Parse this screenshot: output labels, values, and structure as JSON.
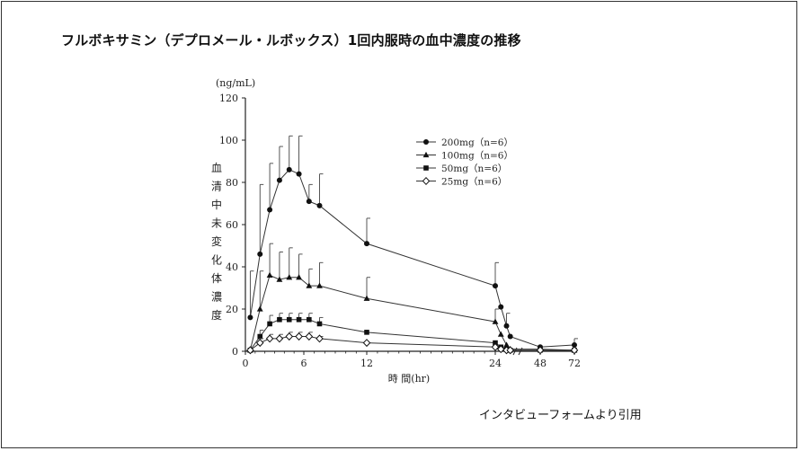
{
  "page": {
    "title": "フルボキサミン（デプロメール・ルボックス）1回内服時の血中濃度の推移",
    "source_note": "インタビューフォームより引用"
  },
  "chart_data": {
    "type": "line",
    "title": "",
    "xlabel": "時 間(hr)",
    "ylabel": "血清中未変化体濃度",
    "y_unit": "(ng/mL)",
    "xlim": [
      0,
      72
    ],
    "ylim": [
      0,
      120
    ],
    "x_axis_break": true,
    "x_break_between_hours": [
      24,
      48
    ],
    "xticks": [
      0,
      6,
      12,
      24,
      48,
      72
    ],
    "yticks": [
      0,
      20,
      40,
      60,
      80,
      100,
      120
    ],
    "grid": false,
    "legend_position": "top-right",
    "series": [
      {
        "name": "200mg（n=6）",
        "marker": "filled-circle",
        "x": [
          0.5,
          1.5,
          2.5,
          3.5,
          4.5,
          5.5,
          6.5,
          7.5,
          12,
          24,
          27,
          30,
          32,
          48,
          72
        ],
        "y": [
          16,
          46,
          67,
          81,
          86,
          84,
          71,
          69,
          51,
          31,
          21,
          12,
          7,
          2,
          3
        ],
        "error": [
          22,
          33,
          22,
          16,
          16,
          18,
          8,
          15,
          12,
          11,
          0,
          6,
          0,
          0,
          3
        ]
      },
      {
        "name": "100mg（n=6）",
        "marker": "filled-triangle",
        "x": [
          0.5,
          1.5,
          2.5,
          3.5,
          4.5,
          5.5,
          6.5,
          7.5,
          12,
          24,
          27,
          30,
          32,
          48,
          72
        ],
        "y": [
          0.5,
          20,
          36,
          34,
          35,
          35,
          31,
          31,
          25,
          14,
          8,
          3,
          1,
          1,
          0.5
        ],
        "error": [
          0,
          18,
          15,
          13,
          14,
          11,
          8,
          11,
          10,
          6,
          0,
          0,
          0,
          0,
          0
        ]
      },
      {
        "name": "50mg（n=6）",
        "marker": "filled-square",
        "x": [
          0.5,
          1.5,
          2.5,
          3.5,
          4.5,
          5.5,
          6.5,
          7.5,
          12,
          24,
          27,
          30,
          32,
          48,
          72
        ],
        "y": [
          0.5,
          7,
          13,
          15,
          15,
          15,
          15,
          13,
          9,
          4,
          2,
          1,
          0.5,
          0.5,
          0.5
        ],
        "error": [
          0,
          3,
          4,
          3,
          3,
          3,
          3,
          3,
          0,
          0,
          0,
          0,
          0,
          0,
          0
        ]
      },
      {
        "name": "25mg（n=6）",
        "marker": "open-diamond",
        "x": [
          0.5,
          1.5,
          2.5,
          3.5,
          4.5,
          5.5,
          6.5,
          7.5,
          12,
          24,
          27,
          30,
          32,
          48,
          72
        ],
        "y": [
          0.5,
          4,
          6,
          6,
          7,
          7,
          7,
          6,
          4,
          2,
          1,
          0.5,
          0.5,
          0.5,
          0.5
        ],
        "error": [
          0,
          2,
          2,
          2,
          2,
          2,
          2,
          1,
          0,
          0,
          0,
          0,
          0,
          0,
          0
        ]
      }
    ]
  }
}
